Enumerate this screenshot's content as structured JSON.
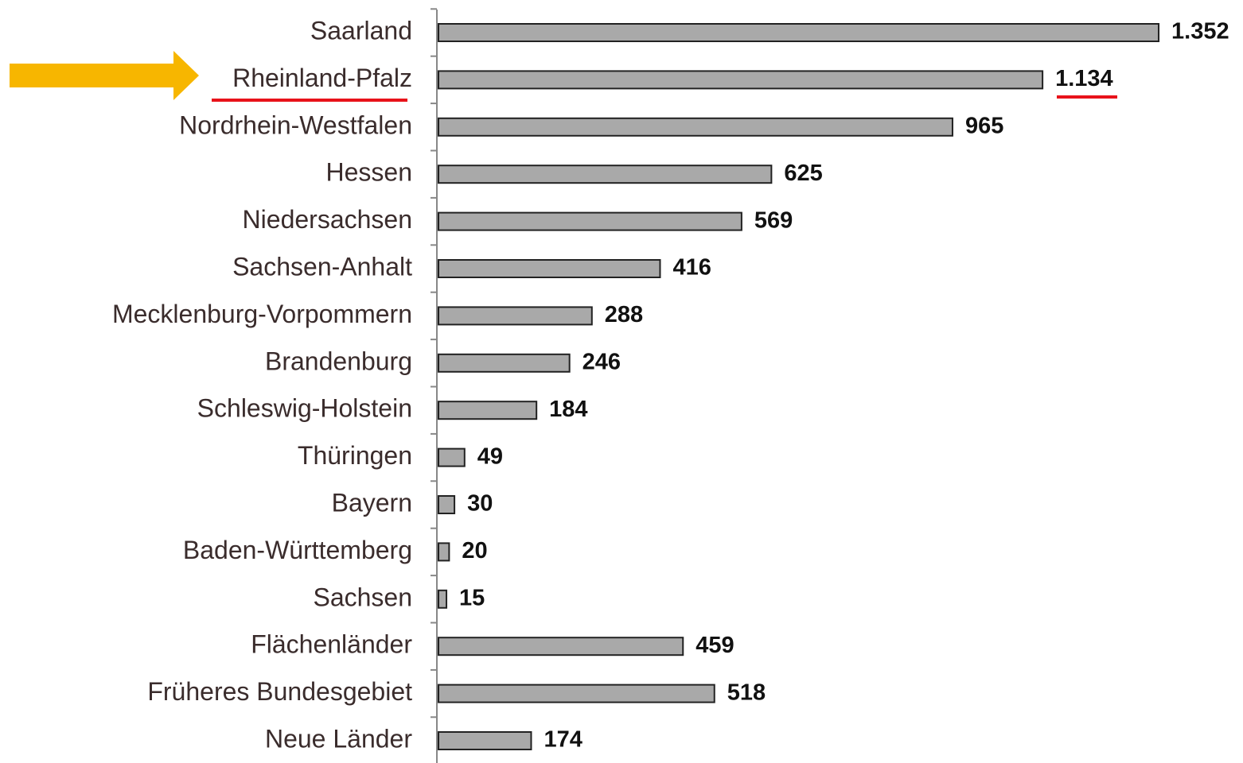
{
  "chart_data": {
    "type": "barh",
    "categories": [
      "Saarland",
      "Rheinland-Pfalz",
      "Nordrhein-Westfalen",
      "Hessen",
      "Niedersachsen",
      "Sachsen-Anhalt",
      "Mecklenburg-Vorpommern",
      "Brandenburg",
      "Schleswig-Holstein",
      "Thüringen",
      "Bayern",
      "Baden-Württemberg",
      "Sachsen",
      "Flächenländer",
      "Früheres Bundesgebiet",
      "Neue Länder"
    ],
    "values": [
      1352,
      1134,
      965,
      625,
      569,
      416,
      288,
      246,
      184,
      49,
      30,
      20,
      15,
      459,
      518,
      174
    ],
    "value_labels": [
      "1.352",
      "1.134",
      "965",
      "625",
      "569",
      "416",
      "288",
      "246",
      "184",
      "49",
      "30",
      "20",
      "15",
      "459",
      "518",
      "174"
    ],
    "color": "#a9a9a9",
    "xlim": [
      0,
      1400
    ]
  }
}
